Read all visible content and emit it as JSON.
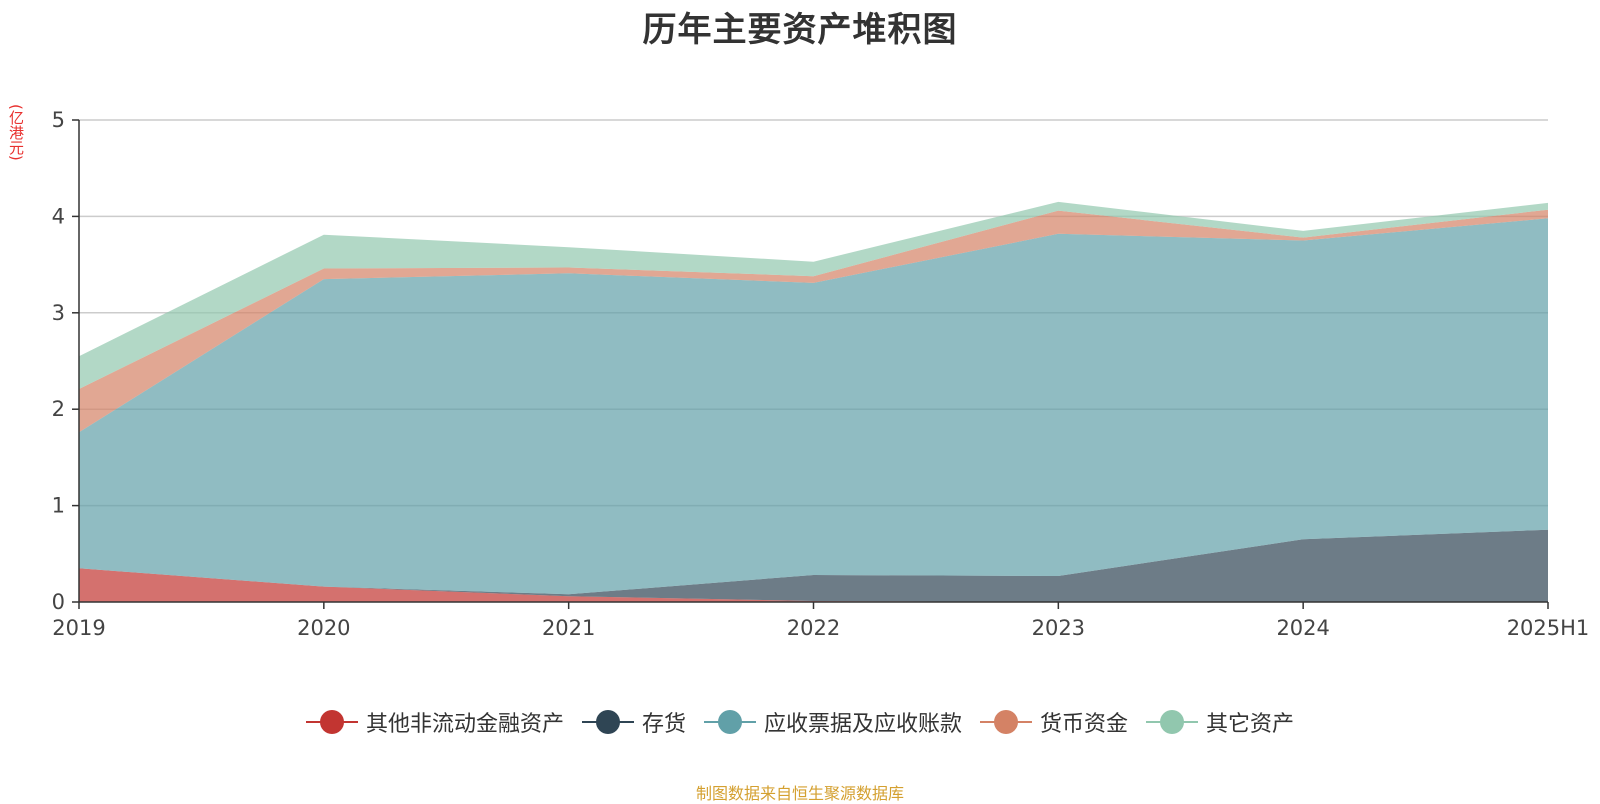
{
  "title": "历年主要资产堆积图",
  "unit_label": "(亿港元)",
  "source": "制图数据来自恒生聚源数据库",
  "chart_data": {
    "type": "area",
    "stacked": true,
    "categories": [
      "2019",
      "2020",
      "2021",
      "2022",
      "2023",
      "2024",
      "2025H1"
    ],
    "ylim": [
      0,
      5
    ],
    "yticks": [
      "0",
      "1",
      "2",
      "3",
      "4",
      "5"
    ],
    "grid": true,
    "legend_position": "bottom",
    "series": [
      {
        "name": "其他非流动金融资产",
        "color": "#c23531",
        "values": [
          0.35,
          0.16,
          0.06,
          0.01,
          0.0,
          0.0,
          0.0
        ]
      },
      {
        "name": "存货",
        "color": "#2f4554",
        "values": [
          0.0,
          0.0,
          0.02,
          0.27,
          0.27,
          0.65,
          0.75
        ]
      },
      {
        "name": "应收票据及应收账款",
        "color": "#61a0a8",
        "values": [
          1.41,
          3.19,
          3.33,
          3.03,
          3.55,
          3.1,
          3.23
        ]
      },
      {
        "name": "货币资金",
        "color": "#d48265",
        "values": [
          0.45,
          0.11,
          0.06,
          0.07,
          0.24,
          0.03,
          0.09
        ]
      },
      {
        "name": "其它资产",
        "color": "#91c7ae",
        "values": [
          0.34,
          0.35,
          0.21,
          0.15,
          0.09,
          0.07,
          0.07
        ]
      }
    ]
  }
}
